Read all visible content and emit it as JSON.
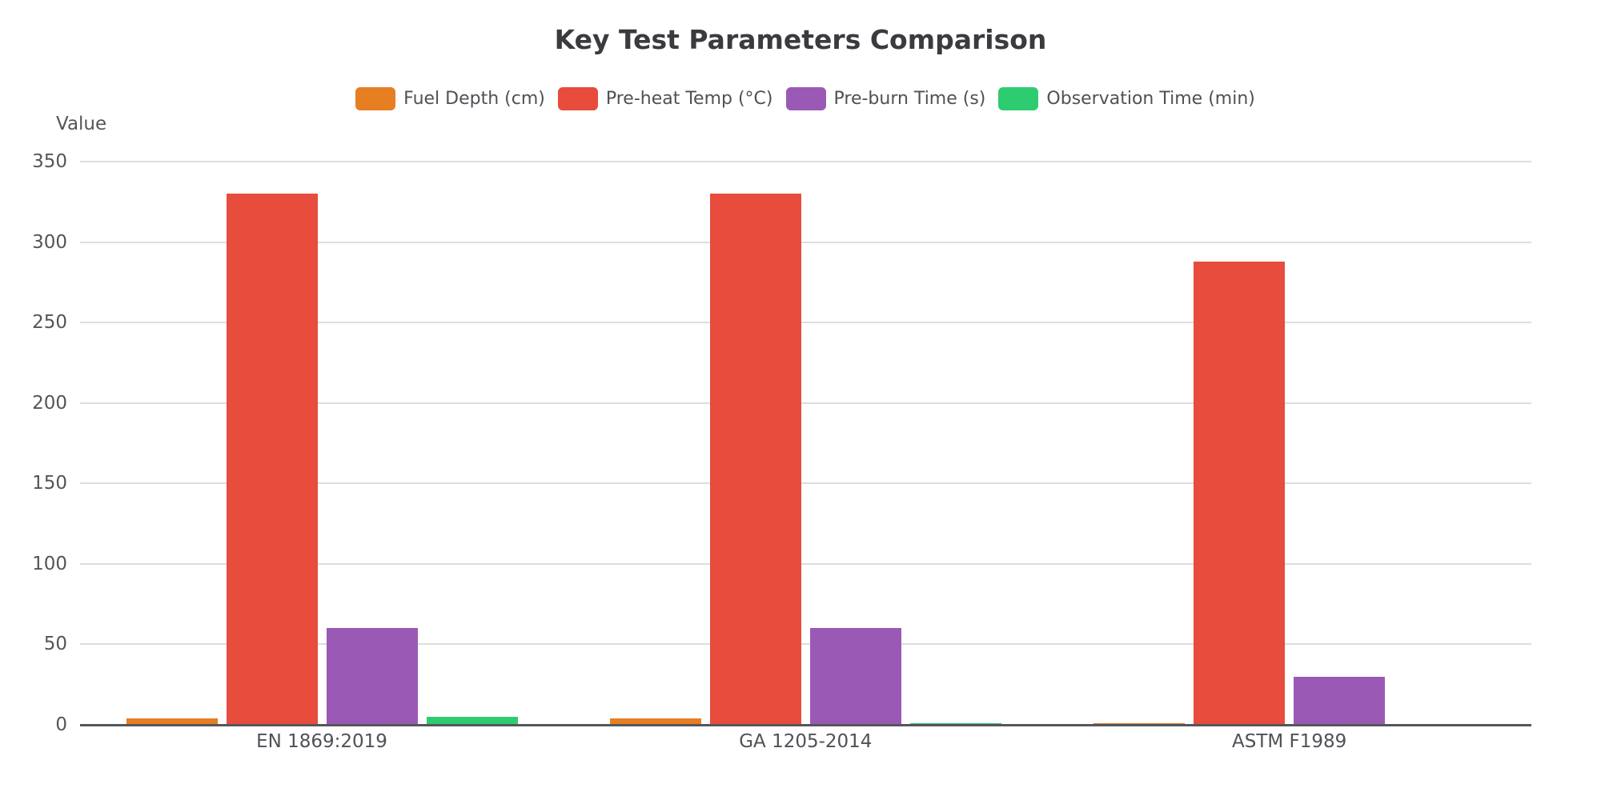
{
  "chart_data": {
    "type": "bar",
    "title": "Key Test Parameters Comparison",
    "xlabel": "",
    "ylabel": "Value",
    "ylim": [
      0,
      350
    ],
    "yticks": [
      0,
      50,
      100,
      150,
      200,
      250,
      300,
      350
    ],
    "grid": true,
    "legend_position": "top",
    "categories": [
      "EN 1869:2019",
      "GA 1205-2014",
      "ASTM F1989"
    ],
    "series": [
      {
        "name": "Fuel Depth (cm)",
        "color": "#e67e22",
        "values": [
          4,
          4,
          1
        ]
      },
      {
        "name": "Pre-heat Temp (°C)",
        "color": "#e74c3c",
        "values": [
          330,
          330,
          288
        ]
      },
      {
        "name": "Pre-burn Time (s)",
        "color": "#9b59b6",
        "values": [
          60,
          60,
          30
        ]
      },
      {
        "name": "Observation Time (min)",
        "color": "#2ecc71",
        "values": [
          5,
          1,
          0
        ]
      }
    ]
  }
}
